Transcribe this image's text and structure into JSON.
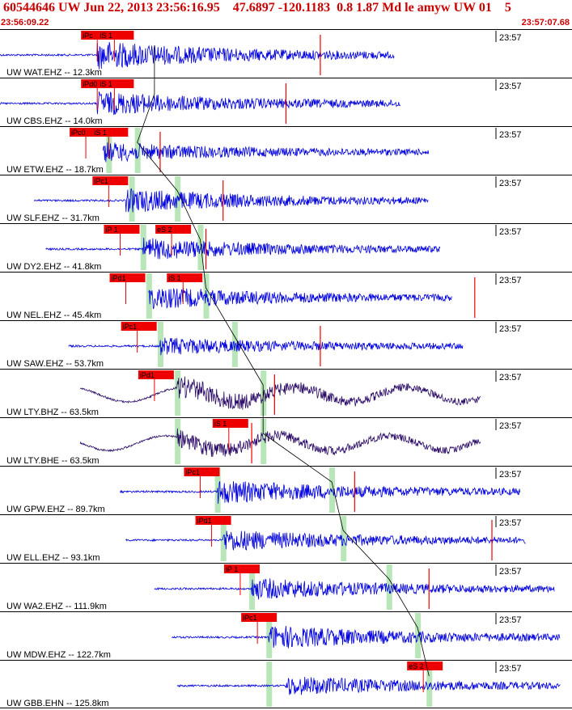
{
  "header": {
    "title": "60544646 UW Jun 22, 2013 23:56:16.95    47.6897 -120.1183  0.8 1.87 Md le amyw UW 01    5",
    "start_time": "23:56:09.22",
    "end_time": "23:57:07.68"
  },
  "colors": {
    "accent_red": "#cc0000",
    "pick_red": "#ee0000",
    "trace_blue": "#0000dd",
    "trace_purple": "#2a0a66",
    "pick_green": "#b8e6b8",
    "separator": "#000000"
  },
  "chart_data": {
    "type": "seismogram",
    "time_axis": {
      "start": "23:56:09.22",
      "end": "23:57:07.68",
      "minute_label": "23:57"
    },
    "traces": [
      {
        "label": "UW WAT.EHZ -- 12.3km",
        "color": "#0000dd",
        "start": 0.0,
        "end": 0.69,
        "p_onset": 0.17,
        "amp": 0.55,
        "picks": [
          {
            "text": "iPc",
            "pos": 0.17
          },
          {
            "text": "iS 1",
            "pos": 0.2
          }
        ],
        "green": [],
        "marks": [
          0.56
        ]
      },
      {
        "label": "UW CBS.EHZ -- 14.0km",
        "color": "#0000dd",
        "start": 0.0,
        "end": 0.7,
        "p_onset": 0.17,
        "amp": 0.45,
        "picks": [
          {
            "text": "iPd0",
            "pos": 0.17
          },
          {
            "text": "iS 1",
            "pos": 0.2
          }
        ],
        "green": [],
        "marks": [
          0.5
        ]
      },
      {
        "label": "UW ETW.EHZ -- 18.7km",
        "color": "#0000dd",
        "start": 0.18,
        "end": 0.75,
        "p_onset": 0.18,
        "amp": 0.35,
        "picks": [
          {
            "text": "iPc0",
            "pos": 0.15
          },
          {
            "text": "iS 1",
            "pos": 0.19
          }
        ],
        "green": [
          0.19,
          0.24
        ],
        "marks": [
          0.28
        ]
      },
      {
        "label": "UW SLF.EHZ -- 31.7km",
        "color": "#0000dd",
        "start": 0.06,
        "end": 0.75,
        "p_onset": 0.22,
        "amp": 0.45,
        "picks": [
          {
            "text": "iPc1",
            "pos": 0.19
          }
        ],
        "green": [
          0.23,
          0.31
        ],
        "marks": [
          0.39
        ]
      },
      {
        "label": "UW DY2.EHZ -- 41.8km",
        "color": "#0000dd",
        "start": 0.08,
        "end": 0.77,
        "p_onset": 0.25,
        "amp": 0.4,
        "picks": [
          {
            "text": "iP 1",
            "pos": 0.21
          },
          {
            "text": "eS 2",
            "pos": 0.3
          }
        ],
        "green": [
          0.25,
          0.35
        ],
        "marks": [
          0.36
        ]
      },
      {
        "label": "UW NEL.EHZ -- 45.4km",
        "color": "#0000dd",
        "start": 0.26,
        "end": 0.79,
        "p_onset": 0.26,
        "amp": 0.42,
        "picks": [
          {
            "text": "iPd1",
            "pos": 0.22
          },
          {
            "text": "iS 1",
            "pos": 0.32
          }
        ],
        "green": [
          0.26,
          0.36
        ],
        "marks": [
          0.83
        ]
      },
      {
        "label": "UW SAW.EHZ -- 53.7km",
        "color": "#0000dd",
        "start": 0.12,
        "end": 0.81,
        "p_onset": 0.28,
        "amp": 0.3,
        "picks": [
          {
            "text": "iPc1",
            "pos": 0.24
          }
        ],
        "green": [
          0.28,
          0.41
        ],
        "marks": [
          0.56
        ]
      },
      {
        "label": "UW LTY.BHZ -- 63.5km",
        "color": "#2a0a66",
        "start": 0.14,
        "end": 0.84,
        "p_onset": 0.31,
        "amp": 0.4,
        "picks": [
          {
            "text": "iPd1",
            "pos": 0.27
          }
        ],
        "green": [
          0.31,
          0.46
        ],
        "marks": [
          0.48
        ]
      },
      {
        "label": "UW LTY.BHE -- 63.5km",
        "color": "#2a0a66",
        "start": 0.14,
        "end": 0.84,
        "p_onset": 0.31,
        "amp": 0.3,
        "picks": [
          {
            "text": "iS 1",
            "pos": 0.4
          }
        ],
        "green": [
          0.31,
          0.46
        ],
        "marks": [
          0.44
        ]
      },
      {
        "label": "UW GPW.EHZ -- 89.7km",
        "color": "#0000dd",
        "start": 0.21,
        "end": 0.91,
        "p_onset": 0.38,
        "amp": 0.45,
        "picks": [
          {
            "text": "iPc1",
            "pos": 0.35
          }
        ],
        "green": [
          0.38,
          0.58
        ],
        "marks": [
          0.62
        ]
      },
      {
        "label": "UW ELL.EHZ -- 93.1km",
        "color": "#0000dd",
        "start": 0.22,
        "end": 0.92,
        "p_onset": 0.39,
        "amp": 0.4,
        "picks": [
          {
            "text": "iPd1",
            "pos": 0.37
          }
        ],
        "green": [
          0.39,
          0.6
        ],
        "marks": [
          0.86
        ]
      },
      {
        "label": "UW WA2.EHZ -- 111.9km",
        "color": "#0000dd",
        "start": 0.27,
        "end": 0.97,
        "p_onset": 0.44,
        "amp": 0.4,
        "picks": [
          {
            "text": "iP 1",
            "pos": 0.42
          }
        ],
        "green": [
          0.44,
          0.68
        ],
        "marks": [
          0.75
        ]
      },
      {
        "label": "UW MDW.EHZ -- 122.7km",
        "color": "#0000dd",
        "start": 0.3,
        "end": 0.98,
        "p_onset": 0.47,
        "amp": 0.45,
        "picks": [
          {
            "text": "iPc1",
            "pos": 0.45
          }
        ],
        "green": [
          0.47,
          0.73
        ],
        "marks": []
      },
      {
        "label": "UW GBB.EHN -- 125.8km",
        "color": "#0000dd",
        "start": 0.31,
        "end": 0.98,
        "p_onset": 0.5,
        "amp": 0.35,
        "picks": [
          {
            "text": "eS 2",
            "pos": 0.74
          }
        ],
        "green": [
          0.47,
          0.75
        ],
        "marks": []
      }
    ]
  }
}
